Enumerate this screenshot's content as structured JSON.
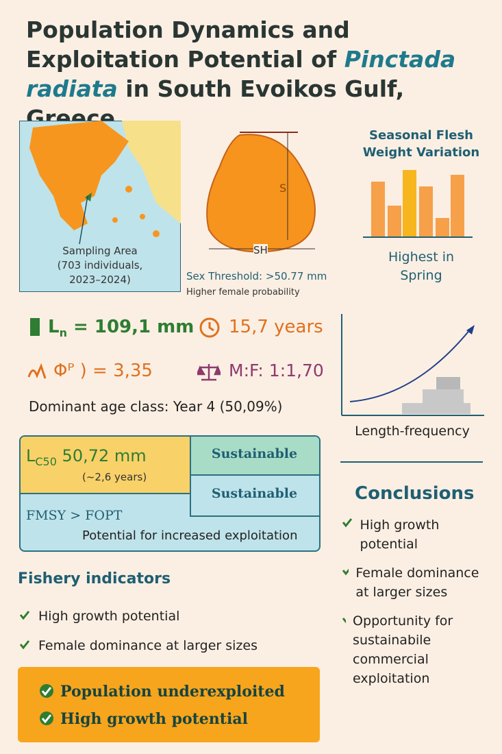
{
  "title": {
    "pre": "Population Dynamics and Exploitation Potential of ",
    "species": "Pinctada radiata",
    "post": " in South Evoikos Gulf, Greece"
  },
  "map": {
    "label": "Sampling Area",
    "detail1": "(703 individuals,",
    "detail2": "2023–2024)"
  },
  "shell": {
    "height_label": "S",
    "width_label": "SH",
    "threshold": "Sex Threshold: >50.77 mm",
    "note": "Higher female probability"
  },
  "seasonal": {
    "title": "Seasonal Flesh Weight Variation",
    "caption": "Highest in Spring"
  },
  "stats": {
    "linf_symbol": "L",
    "linf_sub": "n",
    "linf_value": "= 109,1 mm",
    "lifespan": "15,7 years",
    "phi": "Φᴾ ) = 3,35",
    "sex_ratio": "M:F: 1:1,70",
    "dominant": "Dominant age class: Year 4 (50,09%)"
  },
  "length_frequency": {
    "caption": "Length-frequency"
  },
  "exploitation": {
    "lc_symbol": "L",
    "lc_sub": "C50",
    "lc_value": "50,72 mm",
    "lc_note": "(~2,6 years)",
    "status1": "Sustainable",
    "status2": "Sustainable",
    "fmsy": "FMSY",
    "gt": ">",
    "fopt": "FOPT",
    "potential": "Potential for increased exploitation"
  },
  "fishery": {
    "title": "Fishery indicators",
    "items": [
      "High growth potential",
      "Female dominance at larger sizes"
    ]
  },
  "conclusions": {
    "title": "Conclusions",
    "items": [
      "High growth potential",
      "Female dominance at larger sizes",
      "Opportunity for sustainabile commercial exploitation"
    ]
  },
  "summary": {
    "items": [
      "Population underexploited",
      "High growth potential"
    ]
  }
}
